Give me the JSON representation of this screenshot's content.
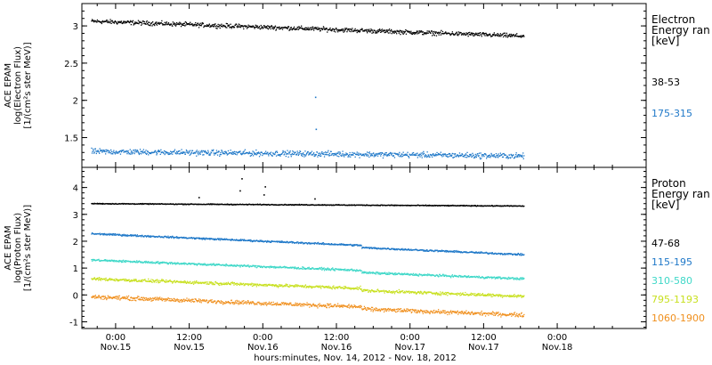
{
  "chart_data": [
    {
      "type": "scatter",
      "panel": "electron",
      "ylabel_lines": [
        "ACE EPAM",
        "log(Electron Flux)",
        "[1/(cm²s ster MeV)]"
      ],
      "ylim": [
        1.1,
        3.3
      ],
      "yticks": [
        1.5,
        2.0,
        2.5,
        3.0
      ],
      "legend_title_lines": [
        "Electron",
        "Energy ran",
        "[keV]"
      ],
      "series": [
        {
          "name": "38-53",
          "color": "#000000",
          "start": 3.07,
          "end": 2.87,
          "noise": 0.035
        },
        {
          "name": "175-315",
          "color": "#1f78c8",
          "start": 1.32,
          "end": 1.26,
          "noise": 0.045
        }
      ],
      "spikes": [
        {
          "series": 1,
          "x_hours": 32.5,
          "y": 2.05
        },
        {
          "series": 1,
          "x_hours": 32.6,
          "y": 1.62
        }
      ]
    },
    {
      "type": "scatter",
      "panel": "proton",
      "ylabel_lines": [
        "ACE EPAM",
        "log(Proton Flux)",
        "[1/(cm²s ster MeV)]"
      ],
      "ylim": [
        -1.25,
        4.75
      ],
      "yticks": [
        -1,
        0,
        1,
        2,
        3,
        4
      ],
      "legend_title_lines": [
        "Proton",
        "Energy ran",
        "[keV]"
      ],
      "series": [
        {
          "name": "47-68",
          "color": "#000000",
          "start": 3.42,
          "end": 3.33,
          "noise": 0.02
        },
        {
          "name": "115-195",
          "color": "#1f78c8",
          "start": 2.3,
          "end": 1.6,
          "noise": 0.04
        },
        {
          "name": "310-580",
          "color": "#3fd8c8",
          "start": 1.32,
          "end": 0.7,
          "noise": 0.05
        },
        {
          "name": "795-1193",
          "color": "#c8e020",
          "start": 0.62,
          "end": 0.05,
          "noise": 0.07
        },
        {
          "name": "1060-1900",
          "color": "#f0901e",
          "start": -0.05,
          "end": -0.65,
          "noise": 0.09
        }
      ],
      "spikes": [
        {
          "series": 0,
          "x_hours": 20.5,
          "y": 4.35
        },
        {
          "series": 0,
          "x_hours": 20.2,
          "y": 3.9
        },
        {
          "series": 0,
          "x_hours": 24.3,
          "y": 4.05
        },
        {
          "series": 0,
          "x_hours": 24.1,
          "y": 3.75
        },
        {
          "series": 0,
          "x_hours": 13.5,
          "y": 3.65
        },
        {
          "series": 0,
          "x_hours": 32.4,
          "y": 3.6
        }
      ]
    }
  ],
  "x_axis": {
    "xlabel": "hours:minutes, Nov. 14, 2012 - Nov. 18, 2012",
    "x_range_hours": [
      -5.5,
      86.5
    ],
    "data_end_hours": 66.5,
    "ticks": [
      {
        "hours": 0,
        "time": "0:00",
        "date": "Nov.15"
      },
      {
        "hours": 12,
        "time": "12:00",
        "date": "Nov.15"
      },
      {
        "hours": 24,
        "time": "0:00",
        "date": "Nov.16"
      },
      {
        "hours": 36,
        "time": "12:00",
        "date": "Nov.16"
      },
      {
        "hours": 48,
        "time": "0:00",
        "date": "Nov.17"
      },
      {
        "hours": 60,
        "time": "12:00",
        "date": "Nov.17"
      },
      {
        "hours": 72,
        "time": "0:00",
        "date": "Nov.18"
      }
    ]
  }
}
